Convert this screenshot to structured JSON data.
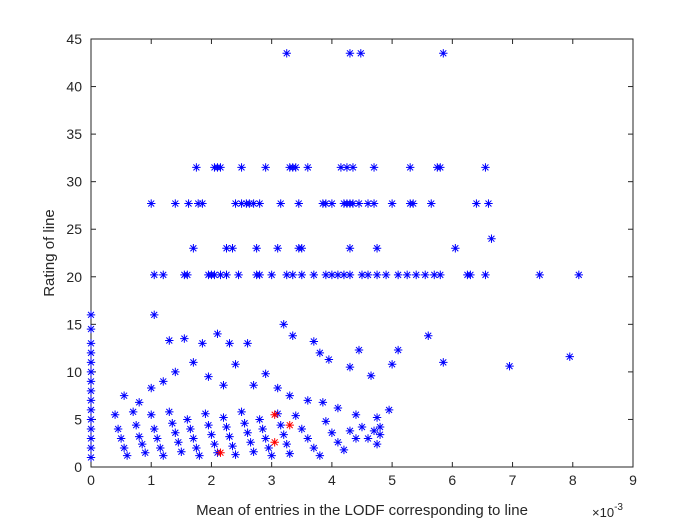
{
  "chart_data": {
    "type": "scatter",
    "title": "",
    "xlabel": "Mean of entries in the LODF corresponding to line",
    "ylabel": "Rating of line",
    "x_exponent_label": "×10",
    "x_exponent_power": "-3",
    "xlim": [
      0,
      9
    ],
    "ylim": [
      0,
      45
    ],
    "xticks": [
      0,
      1,
      2,
      3,
      4,
      5,
      6,
      7,
      8,
      9
    ],
    "yticks": [
      0,
      5,
      10,
      15,
      20,
      25,
      30,
      35,
      40,
      45
    ],
    "xtick_labels": [
      "0",
      "1",
      "2",
      "3",
      "4",
      "5",
      "6",
      "7",
      "8",
      "9"
    ],
    "ytick_labels": [
      "0",
      "5",
      "10",
      "15",
      "20",
      "25",
      "30",
      "35",
      "40",
      "45"
    ],
    "marker": "asterisk",
    "grid": false,
    "series": [
      {
        "color": "#0000ff",
        "points": [
          [
            3.25,
            43.5
          ],
          [
            4.3,
            43.5
          ],
          [
            4.48,
            43.5
          ],
          [
            5.85,
            43.5
          ],
          [
            1.75,
            31.5
          ],
          [
            2.05,
            31.5
          ],
          [
            2.1,
            31.5
          ],
          [
            2.15,
            31.5
          ],
          [
            2.5,
            31.5
          ],
          [
            2.9,
            31.5
          ],
          [
            3.3,
            31.5
          ],
          [
            3.35,
            31.5
          ],
          [
            3.4,
            31.5
          ],
          [
            3.6,
            31.5
          ],
          [
            4.15,
            31.5
          ],
          [
            4.25,
            31.5
          ],
          [
            4.35,
            31.5
          ],
          [
            4.7,
            31.5
          ],
          [
            5.3,
            31.5
          ],
          [
            5.75,
            31.5
          ],
          [
            5.8,
            31.5
          ],
          [
            6.55,
            31.5
          ],
          [
            1.0,
            27.7
          ],
          [
            1.4,
            27.7
          ],
          [
            1.62,
            27.7
          ],
          [
            1.78,
            27.7
          ],
          [
            1.85,
            27.7
          ],
          [
            2.4,
            27.7
          ],
          [
            2.5,
            27.7
          ],
          [
            2.58,
            27.7
          ],
          [
            2.63,
            27.7
          ],
          [
            2.7,
            27.7
          ],
          [
            2.8,
            27.7
          ],
          [
            3.15,
            27.7
          ],
          [
            3.45,
            27.7
          ],
          [
            3.85,
            27.7
          ],
          [
            3.9,
            27.7
          ],
          [
            4.0,
            27.7
          ],
          [
            4.2,
            27.7
          ],
          [
            4.25,
            27.7
          ],
          [
            4.3,
            27.7
          ],
          [
            4.35,
            27.7
          ],
          [
            4.45,
            27.7
          ],
          [
            4.6,
            27.7
          ],
          [
            4.7,
            27.7
          ],
          [
            5.0,
            27.7
          ],
          [
            5.3,
            27.7
          ],
          [
            5.35,
            27.7
          ],
          [
            5.65,
            27.7
          ],
          [
            6.4,
            27.7
          ],
          [
            6.6,
            27.7
          ],
          [
            1.7,
            23.0
          ],
          [
            2.25,
            23.0
          ],
          [
            2.35,
            23.0
          ],
          [
            2.75,
            23.0
          ],
          [
            3.1,
            23.0
          ],
          [
            3.45,
            23.0
          ],
          [
            3.5,
            23.0
          ],
          [
            4.3,
            23.0
          ],
          [
            4.75,
            23.0
          ],
          [
            6.05,
            23.0
          ],
          [
            6.65,
            24.0
          ],
          [
            1.05,
            20.2
          ],
          [
            1.2,
            20.2
          ],
          [
            1.55,
            20.2
          ],
          [
            1.6,
            20.2
          ],
          [
            1.95,
            20.2
          ],
          [
            2.0,
            20.2
          ],
          [
            2.05,
            20.2
          ],
          [
            2.15,
            20.2
          ],
          [
            2.25,
            20.2
          ],
          [
            2.45,
            20.2
          ],
          [
            2.75,
            20.2
          ],
          [
            2.8,
            20.2
          ],
          [
            3.0,
            20.2
          ],
          [
            3.25,
            20.2
          ],
          [
            3.35,
            20.2
          ],
          [
            3.5,
            20.2
          ],
          [
            3.7,
            20.2
          ],
          [
            3.9,
            20.2
          ],
          [
            4.0,
            20.2
          ],
          [
            4.1,
            20.2
          ],
          [
            4.2,
            20.2
          ],
          [
            4.3,
            20.2
          ],
          [
            4.5,
            20.2
          ],
          [
            4.6,
            20.2
          ],
          [
            4.75,
            20.2
          ],
          [
            4.9,
            20.2
          ],
          [
            5.1,
            20.2
          ],
          [
            5.25,
            20.2
          ],
          [
            5.4,
            20.2
          ],
          [
            5.55,
            20.2
          ],
          [
            5.7,
            20.2
          ],
          [
            5.8,
            20.2
          ],
          [
            6.25,
            20.2
          ],
          [
            6.3,
            20.2
          ],
          [
            6.55,
            20.2
          ],
          [
            7.45,
            20.2
          ],
          [
            8.1,
            20.2
          ],
          [
            0.0,
            16.0
          ],
          [
            0.0,
            14.5
          ],
          [
            0.0,
            13.0
          ],
          [
            0.0,
            12.0
          ],
          [
            0.0,
            11.0
          ],
          [
            0.0,
            10.0
          ],
          [
            0.0,
            9.0
          ],
          [
            0.0,
            8.0
          ],
          [
            0.0,
            7.0
          ],
          [
            0.0,
            6.0
          ],
          [
            0.0,
            5.0
          ],
          [
            0.0,
            4.0
          ],
          [
            0.0,
            3.0
          ],
          [
            0.0,
            2.0
          ],
          [
            0.0,
            1.0
          ],
          [
            1.05,
            16.0
          ],
          [
            1.3,
            13.3
          ],
          [
            1.55,
            13.5
          ],
          [
            1.85,
            13.0
          ],
          [
            2.1,
            14.0
          ],
          [
            2.3,
            13.0
          ],
          [
            2.6,
            13.0
          ],
          [
            3.2,
            15.0
          ],
          [
            3.35,
            13.8
          ],
          [
            3.7,
            13.2
          ],
          [
            5.6,
            13.8
          ],
          [
            5.1,
            12.3
          ],
          [
            4.45,
            12.3
          ],
          [
            3.8,
            12.0
          ],
          [
            3.95,
            11.3
          ],
          [
            4.3,
            10.5
          ],
          [
            4.65,
            9.6
          ],
          [
            5.0,
            10.8
          ],
          [
            5.85,
            11.0
          ],
          [
            6.95,
            10.6
          ],
          [
            7.95,
            11.6
          ],
          [
            0.55,
            7.5
          ],
          [
            0.8,
            6.8
          ],
          [
            1.0,
            8.3
          ],
          [
            1.2,
            9.0
          ],
          [
            1.4,
            10.0
          ],
          [
            1.7,
            11.0
          ],
          [
            1.95,
            9.5
          ],
          [
            2.2,
            8.6
          ],
          [
            2.4,
            10.8
          ],
          [
            2.7,
            8.6
          ],
          [
            2.9,
            9.8
          ],
          [
            3.1,
            8.3
          ],
          [
            3.3,
            7.5
          ],
          [
            3.6,
            7.0
          ],
          [
            3.85,
            6.8
          ],
          [
            4.1,
            6.2
          ],
          [
            4.4,
            5.5
          ],
          [
            4.75,
            5.2
          ],
          [
            4.95,
            6.0
          ],
          [
            0.4,
            5.5
          ],
          [
            0.45,
            4.0
          ],
          [
            0.5,
            3.0
          ],
          [
            0.55,
            2.0
          ],
          [
            0.6,
            1.2
          ],
          [
            0.7,
            5.8
          ],
          [
            0.75,
            4.4
          ],
          [
            0.8,
            3.2
          ],
          [
            0.85,
            2.4
          ],
          [
            0.9,
            1.5
          ],
          [
            1.0,
            5.5
          ],
          [
            1.05,
            4.0
          ],
          [
            1.1,
            3.0
          ],
          [
            1.15,
            2.0
          ],
          [
            1.2,
            1.2
          ],
          [
            1.3,
            5.8
          ],
          [
            1.35,
            4.6
          ],
          [
            1.4,
            3.6
          ],
          [
            1.45,
            2.6
          ],
          [
            1.5,
            1.6
          ],
          [
            1.6,
            5.0
          ],
          [
            1.65,
            4.0
          ],
          [
            1.7,
            3.0
          ],
          [
            1.75,
            2.0
          ],
          [
            1.8,
            1.2
          ],
          [
            1.9,
            5.6
          ],
          [
            1.95,
            4.4
          ],
          [
            2.0,
            3.4
          ],
          [
            2.05,
            2.4
          ],
          [
            2.1,
            1.5
          ],
          [
            2.2,
            5.2
          ],
          [
            2.25,
            4.2
          ],
          [
            2.3,
            3.2
          ],
          [
            2.35,
            2.2
          ],
          [
            2.4,
            1.3
          ],
          [
            2.5,
            5.8
          ],
          [
            2.55,
            4.6
          ],
          [
            2.6,
            3.6
          ],
          [
            2.65,
            2.6
          ],
          [
            2.7,
            1.6
          ],
          [
            2.8,
            5.0
          ],
          [
            2.85,
            4.0
          ],
          [
            2.9,
            3.0
          ],
          [
            2.95,
            2.0
          ],
          [
            3.0,
            1.2
          ],
          [
            3.1,
            5.6
          ],
          [
            3.15,
            4.4
          ],
          [
            3.2,
            3.4
          ],
          [
            3.25,
            2.4
          ],
          [
            3.3,
            1.4
          ],
          [
            3.4,
            5.4
          ],
          [
            3.5,
            4.0
          ],
          [
            3.6,
            3.0
          ],
          [
            3.7,
            2.0
          ],
          [
            3.8,
            1.2
          ],
          [
            3.9,
            4.8
          ],
          [
            4.0,
            3.6
          ],
          [
            4.1,
            2.6
          ],
          [
            4.2,
            1.8
          ],
          [
            4.3,
            3.8
          ],
          [
            4.4,
            3.0
          ],
          [
            4.5,
            4.2
          ],
          [
            4.6,
            3.0
          ],
          [
            4.7,
            3.8
          ],
          [
            4.75,
            2.4
          ],
          [
            4.8,
            4.2
          ],
          [
            4.8,
            3.4
          ]
        ]
      },
      {
        "color": "#ff0000",
        "points": [
          [
            2.15,
            1.5
          ],
          [
            3.05,
            2.6
          ],
          [
            3.05,
            5.5
          ],
          [
            3.3,
            4.4
          ]
        ]
      }
    ]
  }
}
